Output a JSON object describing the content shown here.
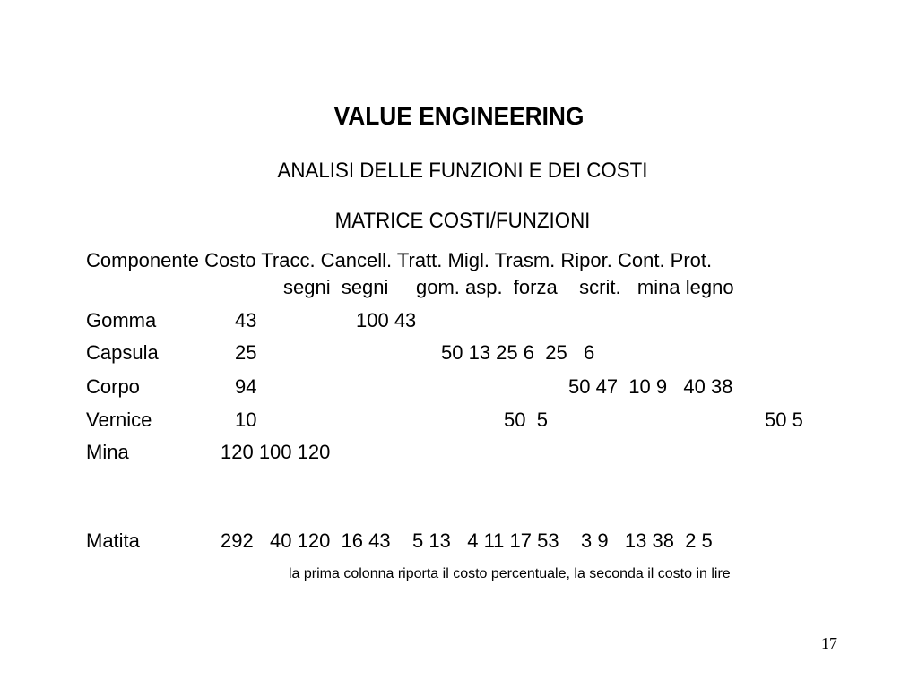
{
  "slide": {
    "title": "VALUE ENGINEERING",
    "subtitle": "ANALISI DELLE FUNZIONI E DEI COSTI",
    "matrix_title": "MATRICE COSTI/FUNZIONI",
    "header_row1": "Componente Costo Tracc. Cancell. Tratt. Migl. Trasm. Ripor. Cont. Prot.",
    "header_row2": "segni  segni     gom. asp.  forza    scrit.   mina legno",
    "rows": [
      {
        "name": "Gomma",
        "cost": "43",
        "values": "100 43"
      },
      {
        "name": "Capsula",
        "cost": "25",
        "values": "50 13 25 6  25   6"
      },
      {
        "name": "Corpo",
        "cost": "94",
        "values": "50 47  10 9   40 38"
      },
      {
        "name": "Vernice",
        "cost": "10",
        "values_a": "50  5",
        "values_b": "50 5"
      },
      {
        "name": "Mina",
        "cost": "120 100 120"
      }
    ],
    "total": {
      "name": "Matita",
      "values": "292   40 120  16 43    5 13   4 11 17 53    3 9   13 38  2 5"
    },
    "note": "la prima colonna riporta il costo percentuale, la seconda il costo in lire",
    "page_number": "17"
  }
}
